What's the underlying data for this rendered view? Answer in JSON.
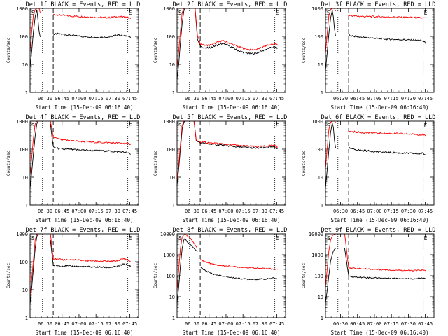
{
  "colors": {
    "events": "#000000",
    "lld": "#ff0000",
    "axes": "#000000",
    "background": "#ffffff"
  },
  "common": {
    "ylabel": "Counts/sec",
    "xlabel": "Start Time (15-Dec-09 06:16:40)",
    "xticks": [
      "06:30",
      "06:45",
      "07:00",
      "07:15",
      "07:30",
      "07:45"
    ],
    "yscale": "log",
    "ylim": [
      1,
      1000
    ],
    "ylim_wide": [
      1,
      10000
    ],
    "xrange_minutes": [
      0,
      96
    ],
    "marker_s": "S",
    "marker_e": "E"
  },
  "chart_data": [
    {
      "type": "line",
      "title": "Det 1f BLACK = Events, RED = LLD",
      "ylim": [
        1,
        1000
      ],
      "y_ticks": [
        "1",
        "10",
        "100",
        "1000"
      ],
      "markers": {
        "dotted": [
          11,
          86.5
        ],
        "dashed": [
          20.5
        ]
      },
      "series": [
        {
          "role": "events",
          "x": [
            0,
            1.5,
            3,
            4.5,
            6,
            7,
            8,
            9
          ],
          "y": [
            8,
            30,
            150,
            500,
            900,
            400,
            150,
            95
          ]
        },
        {
          "role": "events",
          "x": [
            20.5,
            24,
            30,
            40,
            50,
            60,
            70,
            78,
            83,
            86,
            89
          ],
          "y": [
            115,
            125,
            118,
            105,
            97,
            92,
            96,
            115,
            102,
            108,
            88
          ]
        },
        {
          "role": "lld",
          "x": [
            0,
            1.5,
            3,
            4.5,
            6,
            7,
            8,
            9
          ],
          "y": [
            30,
            150,
            600,
            900,
            1000,
            1000,
            1000,
            700
          ]
        },
        {
          "role": "lld",
          "x": [
            20.5,
            24,
            30,
            40,
            50,
            60,
            70,
            78,
            83,
            86,
            89
          ],
          "y": [
            610,
            590,
            560,
            520,
            500,
            480,
            470,
            510,
            490,
            480,
            430
          ]
        }
      ]
    },
    {
      "type": "line",
      "title": "Det 2f BLACK = Events, RED = LLD",
      "ylim": [
        1,
        1000
      ],
      "y_ticks": [
        "1",
        "10",
        "100",
        "1000"
      ],
      "markers": {
        "dotted": [
          11,
          86.5
        ],
        "dashed": [
          20.5
        ]
      },
      "series": [
        {
          "role": "events",
          "x": [
            0,
            1.5,
            3,
            4.5,
            6,
            7,
            8,
            9
          ],
          "y": [
            3,
            10,
            60,
            300,
            800,
            1000,
            1000,
            1000
          ]
        },
        {
          "role": "events",
          "x": [
            16,
            18,
            20.5,
            25,
            30,
            35,
            40,
            45,
            50,
            55,
            60,
            65,
            70,
            75,
            80,
            84,
            87,
            89
          ],
          "y": [
            1000,
            80,
            45,
            38,
            40,
            48,
            55,
            48,
            38,
            30,
            26,
            24,
            25,
            30,
            36,
            40,
            42,
            38
          ]
        },
        {
          "role": "lld",
          "x": [
            0,
            1.5,
            3,
            4.5,
            6,
            7,
            8,
            9
          ],
          "y": [
            8,
            30,
            150,
            700,
            1000,
            1000,
            1000,
            1000
          ]
        },
        {
          "role": "lld",
          "x": [
            16,
            18,
            20.5,
            25,
            30,
            35,
            40,
            45,
            50,
            55,
            60,
            65,
            70,
            75,
            80,
            84,
            87,
            89
          ],
          "y": [
            1000,
            110,
            56,
            48,
            50,
            60,
            70,
            60,
            50,
            42,
            36,
            33,
            34,
            40,
            48,
            52,
            54,
            50
          ]
        }
      ]
    },
    {
      "type": "line",
      "title": "Det 3f BLACK = Events, RED = LLD",
      "ylim": [
        1,
        1000
      ],
      "y_ticks": [
        "1",
        "10",
        "100",
        "1000"
      ],
      "markers": {
        "dotted": [
          11,
          86.5
        ],
        "dashed": [
          20.5
        ]
      },
      "series": [
        {
          "role": "events",
          "x": [
            0,
            1.5,
            3,
            4.5,
            6,
            7,
            8,
            9
          ],
          "y": [
            6,
            25,
            120,
            450,
            850,
            500,
            180,
            100
          ]
        },
        {
          "role": "events",
          "x": [
            20.5,
            25,
            30,
            40,
            50,
            60,
            70,
            78,
            83,
            86,
            89
          ],
          "y": [
            110,
            100,
            95,
            88,
            82,
            78,
            76,
            74,
            72,
            68,
            58
          ]
        },
        {
          "role": "lld",
          "x": [
            0,
            1.5,
            3,
            4.5,
            6,
            7,
            8,
            9
          ],
          "y": [
            25,
            120,
            550,
            900,
            1000,
            1000,
            1000,
            800
          ]
        },
        {
          "role": "lld",
          "x": [
            20.5,
            25,
            30,
            40,
            50,
            60,
            70,
            78,
            83,
            86,
            89
          ],
          "y": [
            560,
            540,
            520,
            510,
            500,
            490,
            480,
            470,
            460,
            455,
            440
          ]
        }
      ]
    },
    {
      "type": "line",
      "title": "Det 4f BLACK = Events, RED = LLD",
      "ylim": [
        1,
        1000
      ],
      "y_ticks": [
        "1",
        "10",
        "100",
        "1000"
      ],
      "markers": {
        "dotted": [
          11,
          86.5
        ],
        "dashed": [
          20.5
        ]
      },
      "series": [
        {
          "role": "events",
          "x": [
            0,
            1.5,
            3,
            4.5,
            6,
            7,
            8,
            9
          ],
          "y": [
            4,
            15,
            70,
            300,
            800,
            1000,
            1000,
            1000
          ]
        },
        {
          "role": "events",
          "x": [
            18,
            20.5,
            25,
            30,
            40,
            50,
            60,
            70,
            78,
            83,
            86,
            89
          ],
          "y": [
            800,
            120,
            105,
            100,
            95,
            92,
            88,
            85,
            80,
            78,
            75,
            65
          ]
        },
        {
          "role": "lld",
          "x": [
            0,
            1.5,
            3,
            4.5,
            6,
            7,
            8,
            9
          ],
          "y": [
            12,
            50,
            250,
            800,
            1000,
            1000,
            1000,
            1000
          ]
        },
        {
          "role": "lld",
          "x": [
            18,
            20.5,
            25,
            30,
            40,
            50,
            60,
            70,
            78,
            83,
            86,
            89
          ],
          "y": [
            1000,
            270,
            230,
            210,
            195,
            185,
            175,
            170,
            165,
            160,
            160,
            150
          ]
        }
      ]
    },
    {
      "type": "line",
      "title": "Det 5f BLACK = Events, RED = LLD",
      "ylim": [
        1,
        1000
      ],
      "y_ticks": [
        "1",
        "10",
        "100",
        "1000"
      ],
      "markers": {
        "dotted": [
          11,
          86.5
        ],
        "dashed": [
          20.5
        ]
      },
      "series": [
        {
          "role": "events",
          "x": [
            0,
            1.5,
            3,
            4.5,
            6,
            7,
            8,
            9
          ],
          "y": [
            5,
            20,
            100,
            500,
            900,
            1000,
            1000,
            1000
          ]
        },
        {
          "role": "events",
          "x": [
            15,
            17,
            20.5,
            25,
            30,
            40,
            50,
            60,
            70,
            78,
            83,
            86,
            89
          ],
          "y": [
            1000,
            200,
            165,
            160,
            150,
            140,
            125,
            115,
            108,
            112,
            120,
            118,
            105
          ]
        },
        {
          "role": "lld",
          "x": [
            0,
            1.5,
            3,
            4.5,
            6,
            7,
            8,
            9
          ],
          "y": [
            8,
            30,
            150,
            700,
            1000,
            1000,
            1000,
            1000
          ]
        },
        {
          "role": "lld",
          "x": [
            15,
            17,
            20.5,
            25,
            30,
            40,
            50,
            60,
            70,
            78,
            83,
            86,
            89
          ],
          "y": [
            1000,
            210,
            180,
            175,
            165,
            155,
            140,
            130,
            122,
            128,
            138,
            136,
            120
          ]
        }
      ]
    },
    {
      "type": "line",
      "title": "Det 6f BLACK = Events, RED = LLD",
      "ylim": [
        1,
        1000
      ],
      "y_ticks": [
        "1",
        "10",
        "100",
        "1000"
      ],
      "markers": {
        "dotted": [
          11,
          86.5
        ],
        "dashed": [
          20.5
        ]
      },
      "series": [
        {
          "role": "events",
          "x": [
            0,
            1.5,
            3,
            4.5,
            6,
            7,
            8,
            9
          ],
          "y": [
            4,
            18,
            90,
            400,
            850,
            600,
            200,
            110
          ]
        },
        {
          "role": "events",
          "x": [
            20.5,
            25,
            30,
            40,
            50,
            60,
            70,
            78,
            83,
            86,
            89
          ],
          "y": [
            110,
            100,
            92,
            85,
            78,
            75,
            72,
            70,
            68,
            72,
            60
          ]
        },
        {
          "role": "lld",
          "x": [
            0,
            1.5,
            3,
            4.5,
            6,
            7,
            8,
            9
          ],
          "y": [
            20,
            100,
            500,
            900,
            1000,
            1000,
            1000,
            900
          ]
        },
        {
          "role": "lld",
          "x": [
            20.5,
            25,
            30,
            40,
            50,
            60,
            70,
            78,
            83,
            86,
            89
          ],
          "y": [
            440,
            420,
            400,
            380,
            370,
            360,
            350,
            340,
            330,
            330,
            290
          ]
        }
      ]
    },
    {
      "type": "line",
      "title": "Det 7f BLACK = Events, RED = LLD",
      "ylim": [
        1,
        1000
      ],
      "y_ticks": [
        "1",
        "10",
        "100",
        "1000"
      ],
      "markers": {
        "dotted": [
          11,
          86.5
        ],
        "dashed": [
          20.5
        ]
      },
      "series": [
        {
          "role": "events",
          "x": [
            0,
            1.5,
            3,
            4.5,
            6,
            7,
            8,
            9
          ],
          "y": [
            3,
            12,
            60,
            300,
            800,
            1000,
            1000,
            1000
          ]
        },
        {
          "role": "events",
          "x": [
            18,
            20.5,
            25,
            30,
            40,
            50,
            60,
            70,
            78,
            83,
            86,
            89
          ],
          "y": [
            600,
            75,
            72,
            70,
            68,
            66,
            65,
            62,
            68,
            82,
            78,
            68
          ]
        },
        {
          "role": "lld",
          "x": [
            0,
            1.5,
            3,
            4.5,
            6,
            7,
            8,
            9
          ],
          "y": [
            6,
            25,
            120,
            600,
            1000,
            1000,
            1000,
            1000
          ]
        },
        {
          "role": "lld",
          "x": [
            18,
            20.5,
            25,
            30,
            40,
            50,
            60,
            70,
            78,
            83,
            86,
            89
          ],
          "y": [
            1000,
            130,
            120,
            118,
            115,
            110,
            106,
            102,
            110,
            130,
            118,
            100
          ]
        }
      ]
    },
    {
      "type": "line",
      "title": "Det 8f BLACK = Events, RED = LLD",
      "ylim": [
        1,
        10000
      ],
      "y_ticks": [
        "1",
        "10",
        "100",
        "1000",
        "10000"
      ],
      "markers": {
        "dotted": [
          11,
          86.5
        ],
        "dashed": [
          20.5
        ]
      },
      "series": [
        {
          "role": "events",
          "x": [
            0,
            1.5,
            3,
            4.5,
            6,
            7,
            8,
            9,
            12,
            15,
            18
          ],
          "y": [
            5,
            30,
            300,
            2000,
            5000,
            6000,
            5000,
            4000,
            3000,
            2000,
            1400
          ]
        },
        {
          "role": "events",
          "x": [
            20.5,
            25,
            30,
            35,
            40,
            50,
            60,
            70,
            78,
            83,
            86,
            89
          ],
          "y": [
            250,
            180,
            130,
            110,
            95,
            80,
            70,
            68,
            70,
            75,
            80,
            70
          ]
        },
        {
          "role": "lld",
          "x": [
            0,
            1.5,
            3,
            4.5,
            6,
            7,
            8,
            9,
            12,
            15,
            18
          ],
          "y": [
            20,
            200,
            2000,
            7000,
            9000,
            9500,
            9000,
            8000,
            6000,
            3500,
            2000
          ]
        },
        {
          "role": "lld",
          "x": [
            20.5,
            25,
            30,
            35,
            40,
            50,
            60,
            70,
            78,
            83,
            86,
            89
          ],
          "y": [
            600,
            450,
            380,
            320,
            300,
            270,
            250,
            230,
            220,
            215,
            210,
            200
          ]
        }
      ]
    },
    {
      "type": "line",
      "title": "Det 9f BLACK = Events, RED = LLD",
      "ylim": [
        1,
        10000
      ],
      "y_ticks": [
        "1",
        "10",
        "100",
        "1000",
        "10000"
      ],
      "markers": {
        "dotted": [
          11,
          86.5
        ],
        "dashed": [
          20.5
        ]
      },
      "series": [
        {
          "role": "events",
          "x": [
            0,
            1.5,
            3,
            4.5,
            6,
            7,
            8,
            9
          ],
          "y": [
            5,
            20,
            100,
            500,
            1000,
            1500,
            1800,
            2000
          ]
        },
        {
          "role": "events",
          "x": [
            17,
            20.5,
            25,
            30,
            40,
            50,
            60,
            70,
            78,
            83,
            86,
            89
          ],
          "y": [
            2000,
            95,
            88,
            85,
            80,
            78,
            76,
            74,
            72,
            75,
            78,
            68
          ]
        },
        {
          "role": "lld",
          "x": [
            0,
            1.5,
            3,
            4.5,
            6,
            7,
            8,
            9
          ],
          "y": [
            30,
            200,
            1500,
            5000,
            8000,
            9000,
            9500,
            9800
          ]
        },
        {
          "role": "lld",
          "x": [
            17,
            20.5,
            25,
            30,
            40,
            50,
            60,
            70,
            78,
            83,
            86,
            89
          ],
          "y": [
            9800,
            240,
            230,
            220,
            205,
            195,
            185,
            180,
            175,
            180,
            185,
            170
          ]
        }
      ]
    }
  ]
}
